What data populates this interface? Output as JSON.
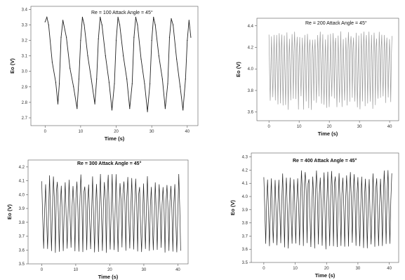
{
  "chart_data": [
    {
      "type": "line",
      "title": "Re = 100    Attack Angle = 45°",
      "xlabel": "Time (s)",
      "ylabel": "Eo (V)",
      "xlim": [
        -4,
        43
      ],
      "ylim": [
        2.65,
        3.42
      ],
      "xticks": [
        "0",
        "10",
        "20",
        "30",
        "40"
      ],
      "yticks": [
        "2.7",
        "2.8",
        "2.9",
        "3.0",
        "3.1",
        "3.2",
        "3.3",
        "3.4"
      ],
      "series": [
        {
          "color": "#222222",
          "x": [
            0,
            0.5,
            1,
            2,
            3,
            3.6,
            4,
            4.5,
            5,
            6,
            7,
            8,
            9,
            9.5,
            10,
            10.5,
            11,
            12,
            13,
            14,
            14.5,
            15,
            15.5,
            16,
            17,
            18,
            18.8,
            19.5,
            20,
            20.5,
            21,
            22,
            23,
            23.8,
            24.5,
            25,
            25.5,
            26,
            27,
            28,
            28.8,
            29.5,
            30,
            30.5,
            31,
            32,
            33,
            33.8,
            34.5,
            35,
            35.5,
            36,
            37,
            38,
            38.8,
            39.5,
            40,
            40.5,
            41
          ],
          "y": [
            3.32,
            3.35,
            3.3,
            3.06,
            2.93,
            2.79,
            2.92,
            3.22,
            3.33,
            3.22,
            3.02,
            2.9,
            2.76,
            2.95,
            3.2,
            3.35,
            3.3,
            3.1,
            2.95,
            2.79,
            2.95,
            3.21,
            3.35,
            3.3,
            3.1,
            2.93,
            2.75,
            2.92,
            3.2,
            3.35,
            3.3,
            3.1,
            2.95,
            2.76,
            2.92,
            3.22,
            3.35,
            3.3,
            3.08,
            2.92,
            2.74,
            2.92,
            3.2,
            3.35,
            3.3,
            3.1,
            2.95,
            2.76,
            2.92,
            3.22,
            3.34,
            3.3,
            3.08,
            2.9,
            2.75,
            2.95,
            3.2,
            3.33,
            3.22
          ]
        }
      ]
    },
    {
      "type": "line",
      "title": "Re = 200    Attack Angle = 45°",
      "xlabel": "Time (s)",
      "ylabel": "Eo (V)",
      "xlim": [
        -4,
        43
      ],
      "ylim": [
        3.52,
        4.47
      ],
      "xticks": [
        "0",
        "10",
        "20",
        "30",
        "40"
      ],
      "yticks": [
        "3.6",
        "3.8",
        "4.0",
        "4.2",
        "4.4"
      ],
      "osc": {
        "period": 0.85,
        "upper": [
          4.27,
          4.35
        ],
        "lower": [
          3.62,
          3.75
        ],
        "color": "#999999"
      }
    },
    {
      "type": "line",
      "title": "Re = 300    Attack Angle = 45°",
      "xlabel": "Time (s)",
      "ylabel": "Eo (V)",
      "xlim": [
        -4,
        43
      ],
      "ylim": [
        3.5,
        4.25
      ],
      "xticks": [
        "0",
        "10",
        "20",
        "30",
        "40"
      ],
      "yticks": [
        "3.5",
        "3.6",
        "3.7",
        "3.8",
        "3.9",
        "4.0",
        "4.1",
        "4.2"
      ],
      "osc": {
        "period": 1.15,
        "upper": [
          4.05,
          4.15
        ],
        "lower": [
          3.58,
          3.62
        ],
        "color": "#222222"
      }
    },
    {
      "type": "line",
      "title": "Re = 400    Attack Angle = 45°",
      "xlabel": "Time (s)",
      "ylabel": "Eo (V)",
      "xlim": [
        -4,
        43
      ],
      "ylim": [
        3.5,
        4.33
      ],
      "xticks": [
        "0",
        "10",
        "20",
        "30",
        "40"
      ],
      "yticks": [
        "3.5",
        "3.6",
        "3.7",
        "3.8",
        "3.9",
        "4.0",
        "4.1",
        "4.2",
        "4.3"
      ],
      "osc": {
        "period": 1.2,
        "upper": [
          4.12,
          4.2
        ],
        "lower": [
          3.6,
          3.65
        ],
        "color": "#222222"
      }
    }
  ]
}
